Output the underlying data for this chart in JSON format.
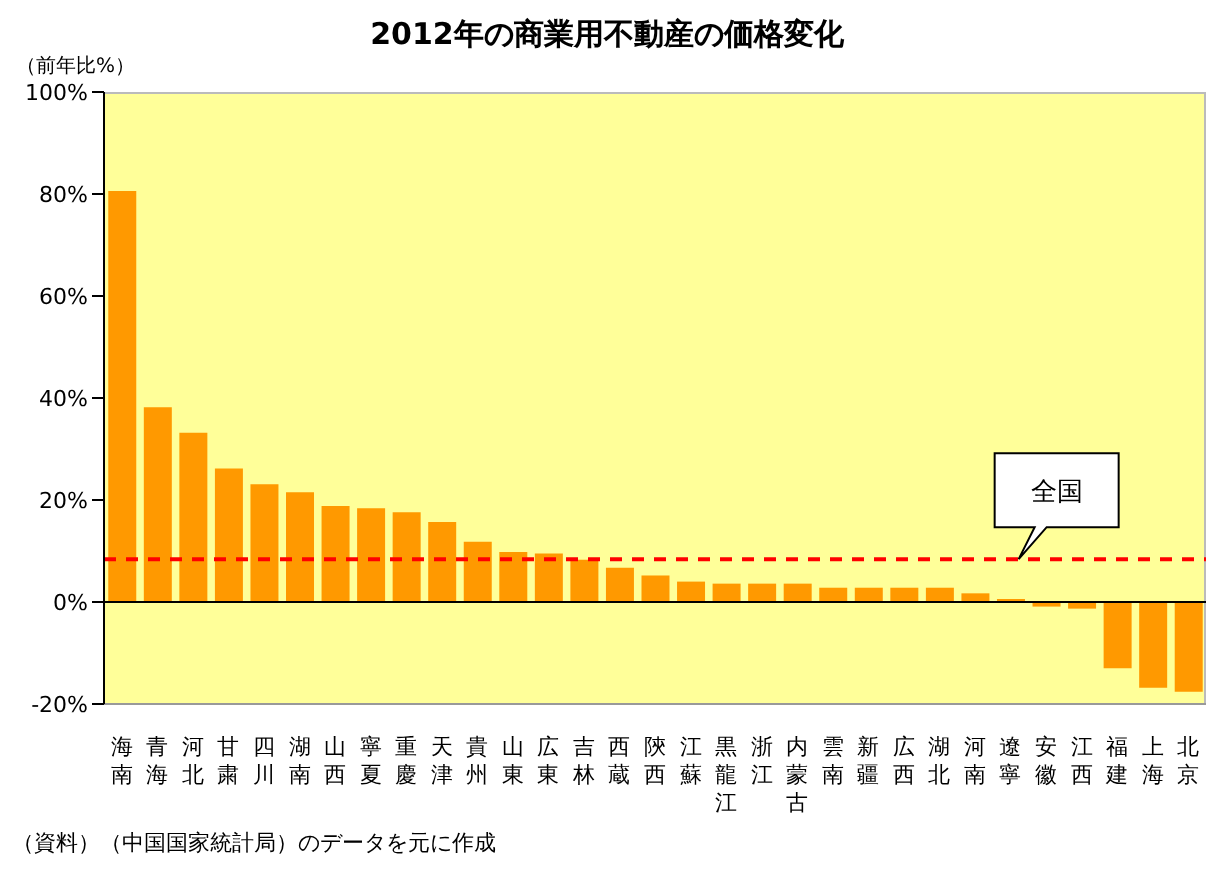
{
  "chart_data": {
    "type": "bar",
    "title": "2012年の商業用不動産の価格変化",
    "ylabel": "（前年比%）",
    "categories": [
      "海南",
      "青海",
      "河北",
      "甘粛",
      "四川",
      "湖南",
      "山西",
      "寧夏",
      "重慶",
      "天津",
      "貴州",
      "山東",
      "広東",
      "吉林",
      "西蔵",
      "陝西",
      "江蘇",
      "黒龍江",
      "浙江",
      "内蒙古",
      "雲南",
      "新疆",
      "広西",
      "湖北",
      "河南",
      "遼寧",
      "安徽",
      "江西",
      "福建",
      "上海",
      "北京"
    ],
    "values": [
      80.6,
      38.2,
      33.2,
      26.2,
      23.1,
      21.5,
      18.8,
      18.4,
      17.6,
      15.7,
      11.8,
      9.8,
      9.5,
      8.3,
      6.7,
      5.2,
      4.0,
      3.6,
      3.6,
      3.6,
      2.8,
      2.8,
      2.8,
      2.8,
      1.7,
      0.6,
      -0.9,
      -1.3,
      -13.0,
      -16.8,
      -17.6
    ],
    "color": "#ff9900",
    "ylim": [
      -20,
      100
    ],
    "yticks": [
      {
        "value": -20,
        "label": "-20%"
      },
      {
        "value": 0,
        "label": "0%"
      },
      {
        "value": 20,
        "label": "20%"
      },
      {
        "value": 40,
        "label": "40%"
      },
      {
        "value": 60,
        "label": "60%"
      },
      {
        "value": 80,
        "label": "80%"
      },
      {
        "value": 100,
        "label": "100%"
      }
    ],
    "ref_lines": [
      {
        "axis": "y",
        "value": 8.4,
        "label": "全国",
        "color": "#ff0000",
        "line_style": "dashed"
      }
    ],
    "annotations": [
      "（資料）（中国国家統計局）のデータを元に作成"
    ]
  }
}
